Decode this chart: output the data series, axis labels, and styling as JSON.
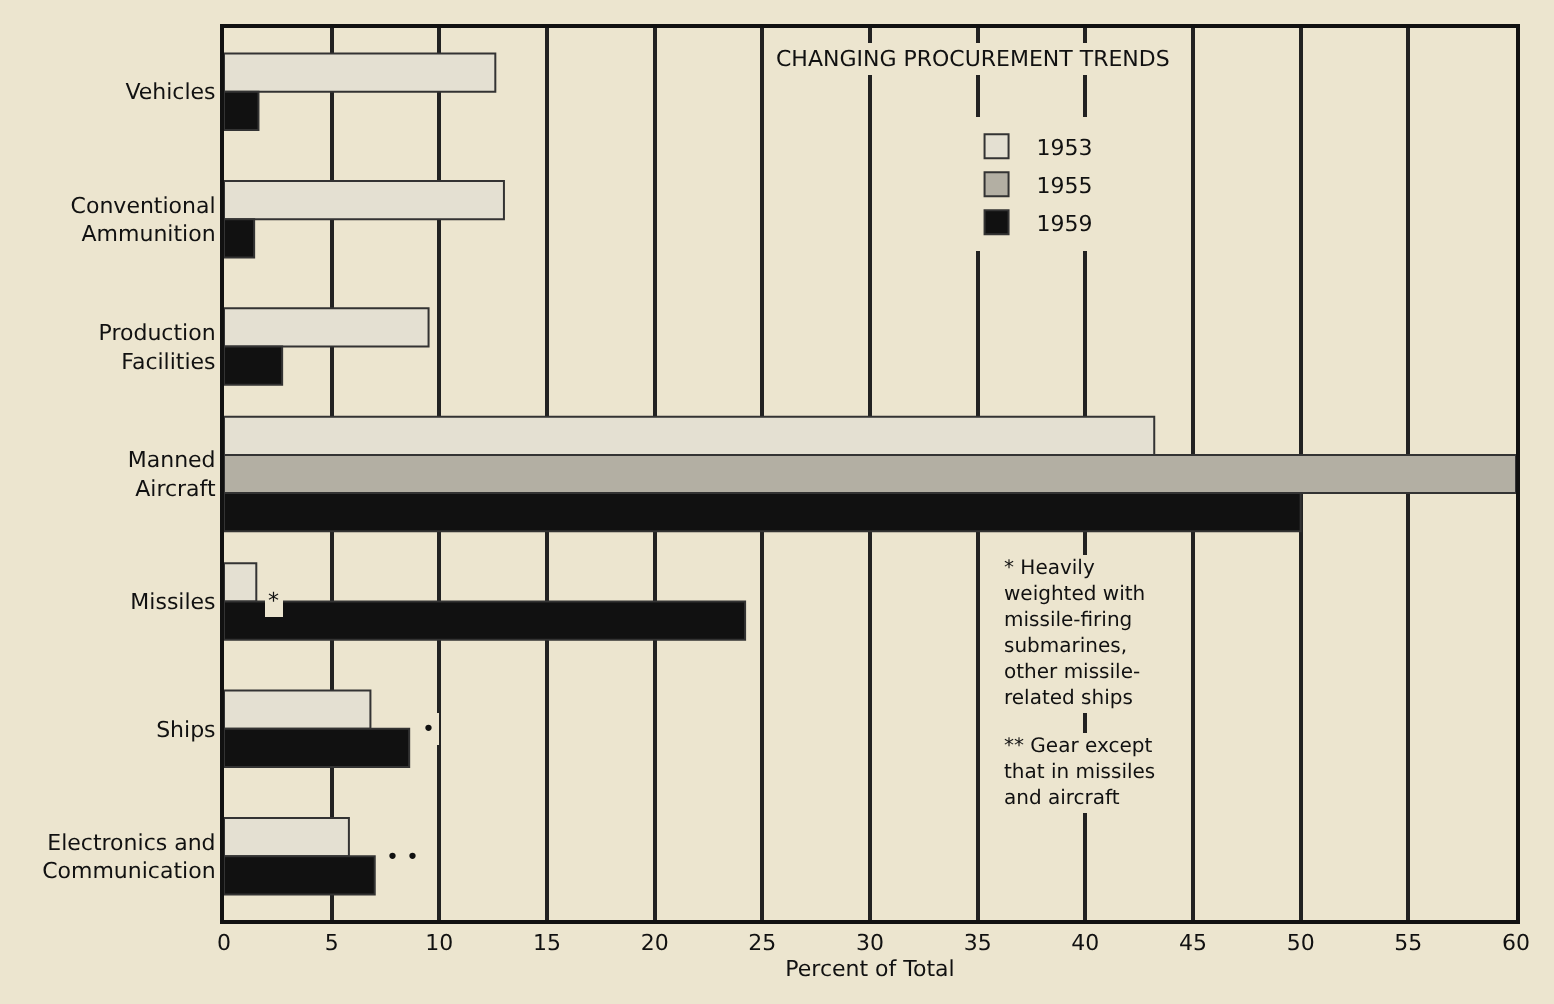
{
  "chart_data": {
    "type": "bar",
    "orientation": "horizontal",
    "title": "CHANGING PROCUREMENT TRENDS",
    "xlabel": "Percent of Total",
    "categories": [
      "Vehicles",
      "Conventional\nAmmunition",
      "Production\nFacilities",
      "Manned\nAircraft",
      "Missiles",
      "Ships",
      "Electronics and\nCommunication"
    ],
    "series": [
      {
        "name": "1953",
        "color": "#e4e0d2",
        "values": [
          12.6,
          13.0,
          9.5,
          43.2,
          1.5,
          6.8,
          5.8
        ]
      },
      {
        "name": "1955",
        "color": "#b3afa3",
        "values": [
          null,
          null,
          null,
          60,
          null,
          null,
          null
        ]
      },
      {
        "name": "1959",
        "color": "#111111",
        "values": [
          1.6,
          1.4,
          2.7,
          50,
          24.2,
          8.6,
          7.0
        ]
      }
    ],
    "xlim": [
      0,
      60
    ],
    "xticks": [
      0,
      5,
      10,
      15,
      20,
      25,
      30,
      35,
      40,
      45,
      50,
      55,
      60
    ],
    "grid": "x",
    "legend": "top right",
    "annotations": [
      {
        "text": "*",
        "x": 1.5,
        "y": "Missiles"
      },
      {
        "text": "•",
        "x": 8.6,
        "y": "Ships"
      },
      {
        "text": "• •",
        "x": 7.0,
        "y": "Electronics and\nCommunication"
      },
      "* Heavily\nweighted with\nmissile-firing\nsubmarines,\nother missile-\nrelated ships",
      "** Gear except\nthat in missiles\nand aircraft"
    ]
  }
}
